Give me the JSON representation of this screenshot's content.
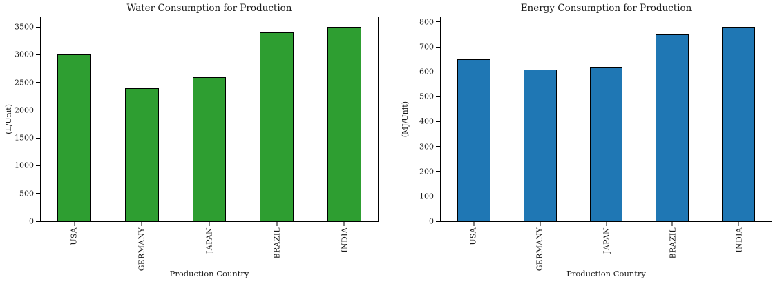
{
  "figure": {
    "background": "#ffffff",
    "text_color": "#1a1a1a"
  },
  "chart_data": [
    {
      "type": "bar",
      "title": "Water Consumption for Production",
      "xlabel": "Production Country",
      "ylabel": "(L/Unit)",
      "categories": [
        "USA",
        "GERMANY",
        "JAPAN",
        "BRAZIL",
        "INDIA"
      ],
      "values": [
        3000,
        2400,
        2600,
        3400,
        3500
      ],
      "yticks": [
        0,
        500,
        1000,
        1500,
        2000,
        2500,
        3000,
        3500
      ],
      "ylim": [
        0,
        3675
      ],
      "bar_color": "#2e9e31",
      "bar_edge_color": "#000000",
      "bar_width_ratio": 0.5,
      "grid": false,
      "legend_position": "none",
      "xtick_rotation_deg": 90
    },
    {
      "type": "bar",
      "title": "Energy Consumption for Production",
      "xlabel": "Production Country",
      "ylabel": "(MJ/Unit)",
      "categories": [
        "USA",
        "GERMANY",
        "JAPAN",
        "BRAZIL",
        "INDIA"
      ],
      "values": [
        650,
        610,
        620,
        750,
        780
      ],
      "yticks": [
        0,
        100,
        200,
        300,
        400,
        500,
        600,
        700,
        800
      ],
      "ylim": [
        0,
        819
      ],
      "bar_color": "#1f77b4",
      "bar_edge_color": "#000000",
      "bar_width_ratio": 0.5,
      "grid": false,
      "legend_position": "none",
      "xtick_rotation_deg": 90
    }
  ]
}
